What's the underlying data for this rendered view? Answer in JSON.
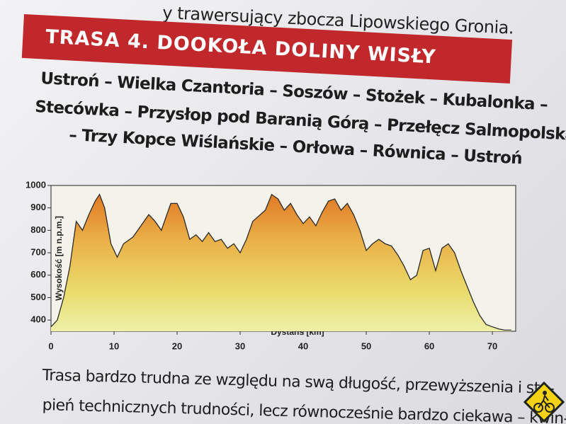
{
  "intro": "y trawersujący zbocza Lipowskiego Gronia.",
  "banner": "TRASA 4.  DOOKOŁA DOLINY WISŁY",
  "route": [
    "Ustroń – Wielka Czantoria – Soszów – Stożek – Kubalonka –",
    "Stecówka – Przysłop pod Baranią Górą – Przełęcz Salmopolska",
    "– Trzy Kopce Wiślańskie – Orłowa – Równica – Ustroń"
  ],
  "chart_data": {
    "type": "area",
    "x_label": "Dystans [km]",
    "y_label": "Wysokość [m n.p.m.]",
    "x": [
      0,
      1,
      2,
      3,
      4,
      5,
      6,
      7,
      7.7,
      8.5,
      9.5,
      10.5,
      11.5,
      13,
      14.5,
      15.5,
      16.5,
      17.5,
      18,
      19,
      20,
      21,
      22,
      23,
      24,
      25,
      26,
      27,
      28,
      29,
      30,
      31,
      32,
      34,
      35,
      36,
      37,
      38,
      39,
      40,
      41,
      42,
      43,
      44,
      45,
      46,
      47,
      48,
      49,
      50,
      51,
      52,
      53,
      54,
      55,
      56,
      57,
      58,
      59,
      60,
      61,
      62,
      63,
      64,
      65,
      66,
      67,
      68,
      69,
      70,
      71,
      72,
      73
    ],
    "values": [
      370,
      400,
      500,
      640,
      840,
      800,
      870,
      930,
      960,
      900,
      740,
      680,
      740,
      770,
      830,
      870,
      840,
      800,
      840,
      920,
      920,
      860,
      760,
      780,
      750,
      790,
      750,
      760,
      720,
      740,
      700,
      760,
      840,
      890,
      960,
      940,
      890,
      920,
      870,
      830,
      860,
      820,
      880,
      930,
      940,
      890,
      920,
      870,
      800,
      710,
      740,
      760,
      740,
      730,
      690,
      640,
      580,
      600,
      710,
      720,
      620,
      720,
      740,
      700,
      620,
      550,
      480,
      420,
      380,
      370,
      360,
      355,
      355
    ],
    "xlim": [
      0,
      73.7
    ],
    "ylim": [
      350,
      1000
    ],
    "xticks": [
      0,
      10,
      20,
      30,
      40,
      50,
      60,
      70
    ],
    "yticks": [
      400,
      500,
      600,
      700,
      800,
      900,
      1000
    ],
    "grid": false
  },
  "description": [
    "Trasa bardzo trudna ze względu na swą długość, przewyższenia i sto-",
    "pień technicznych trudności, lecz równocześnie bardzo ciekawa – kwin-"
  ]
}
